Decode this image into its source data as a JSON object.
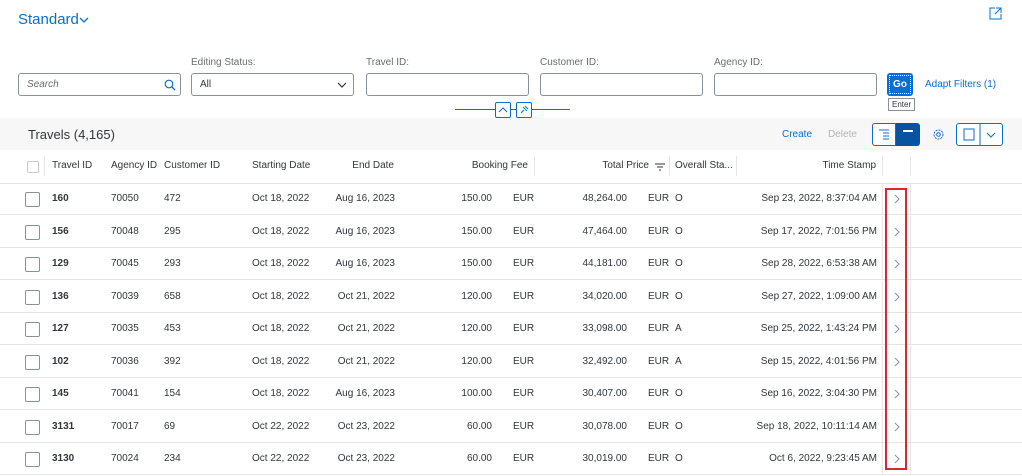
{
  "header": {
    "variant": "Standard"
  },
  "filter_bar": {
    "search_placeholder": "Search",
    "fields": [
      {
        "label": "Editing Status:",
        "value": "All"
      },
      {
        "label": "Travel ID:"
      },
      {
        "label": "Customer ID:"
      },
      {
        "label": "Agency ID:"
      }
    ],
    "go": "Go",
    "tooltip": "Enter",
    "adapt_filters": "Adapt Filters (1)"
  },
  "table": {
    "title": "Travels (4,165)",
    "actions": [
      "Create",
      "Delete"
    ],
    "columns": [
      "Travel ID",
      "Agency ID",
      "Customer ID",
      "Starting Date",
      "End Date",
      "Booking Fee",
      "Total Price",
      "Overall Sta...",
      "Time Stamp"
    ],
    "rows": [
      [
        "160",
        "70050",
        "472",
        "Oct 18, 2022",
        "Aug 16, 2023",
        "150.00",
        "EUR",
        "48,264.00",
        "EUR",
        "O",
        "Sep 23, 2022, 8:37:04 AM"
      ],
      [
        "156",
        "70048",
        "295",
        "Oct 18, 2022",
        "Aug 16, 2023",
        "150.00",
        "EUR",
        "47,464.00",
        "EUR",
        "O",
        "Sep 17, 2022, 7:01:56 PM"
      ],
      [
        "129",
        "70045",
        "293",
        "Oct 18, 2022",
        "Aug 16, 2023",
        "150.00",
        "EUR",
        "44,181.00",
        "EUR",
        "O",
        "Sep 28, 2022, 6:53:38 AM"
      ],
      [
        "136",
        "70039",
        "658",
        "Oct 18, 2022",
        "Oct 21, 2022",
        "120.00",
        "EUR",
        "34,020.00",
        "EUR",
        "O",
        "Sep 27, 2022, 1:09:00 AM"
      ],
      [
        "127",
        "70035",
        "453",
        "Oct 18, 2022",
        "Oct 21, 2022",
        "120.00",
        "EUR",
        "33,098.00",
        "EUR",
        "A",
        "Sep 25, 2022, 1:43:24 PM"
      ],
      [
        "102",
        "70036",
        "392",
        "Oct 18, 2022",
        "Oct 21, 2022",
        "120.00",
        "EUR",
        "32,492.00",
        "EUR",
        "A",
        "Sep 15, 2022, 4:01:56 PM"
      ],
      [
        "145",
        "70041",
        "154",
        "Oct 18, 2022",
        "Aug 16, 2023",
        "100.00",
        "EUR",
        "30,407.00",
        "EUR",
        "O",
        "Sep 16, 2022, 3:04:30 PM"
      ],
      [
        "3131",
        "70017",
        "69",
        "Oct 22, 2022",
        "Oct 23, 2022",
        "60.00",
        "EUR",
        "30,078.00",
        "EUR",
        "O",
        "Sep 18, 2022, 10:11:14 AM"
      ],
      [
        "3130",
        "70024",
        "234",
        "Oct 22, 2022",
        "Oct 23, 2022",
        "60.00",
        "EUR",
        "30,019.00",
        "EUR",
        "O",
        "Oct 6, 2022, 9:23:45 AM"
      ]
    ]
  }
}
